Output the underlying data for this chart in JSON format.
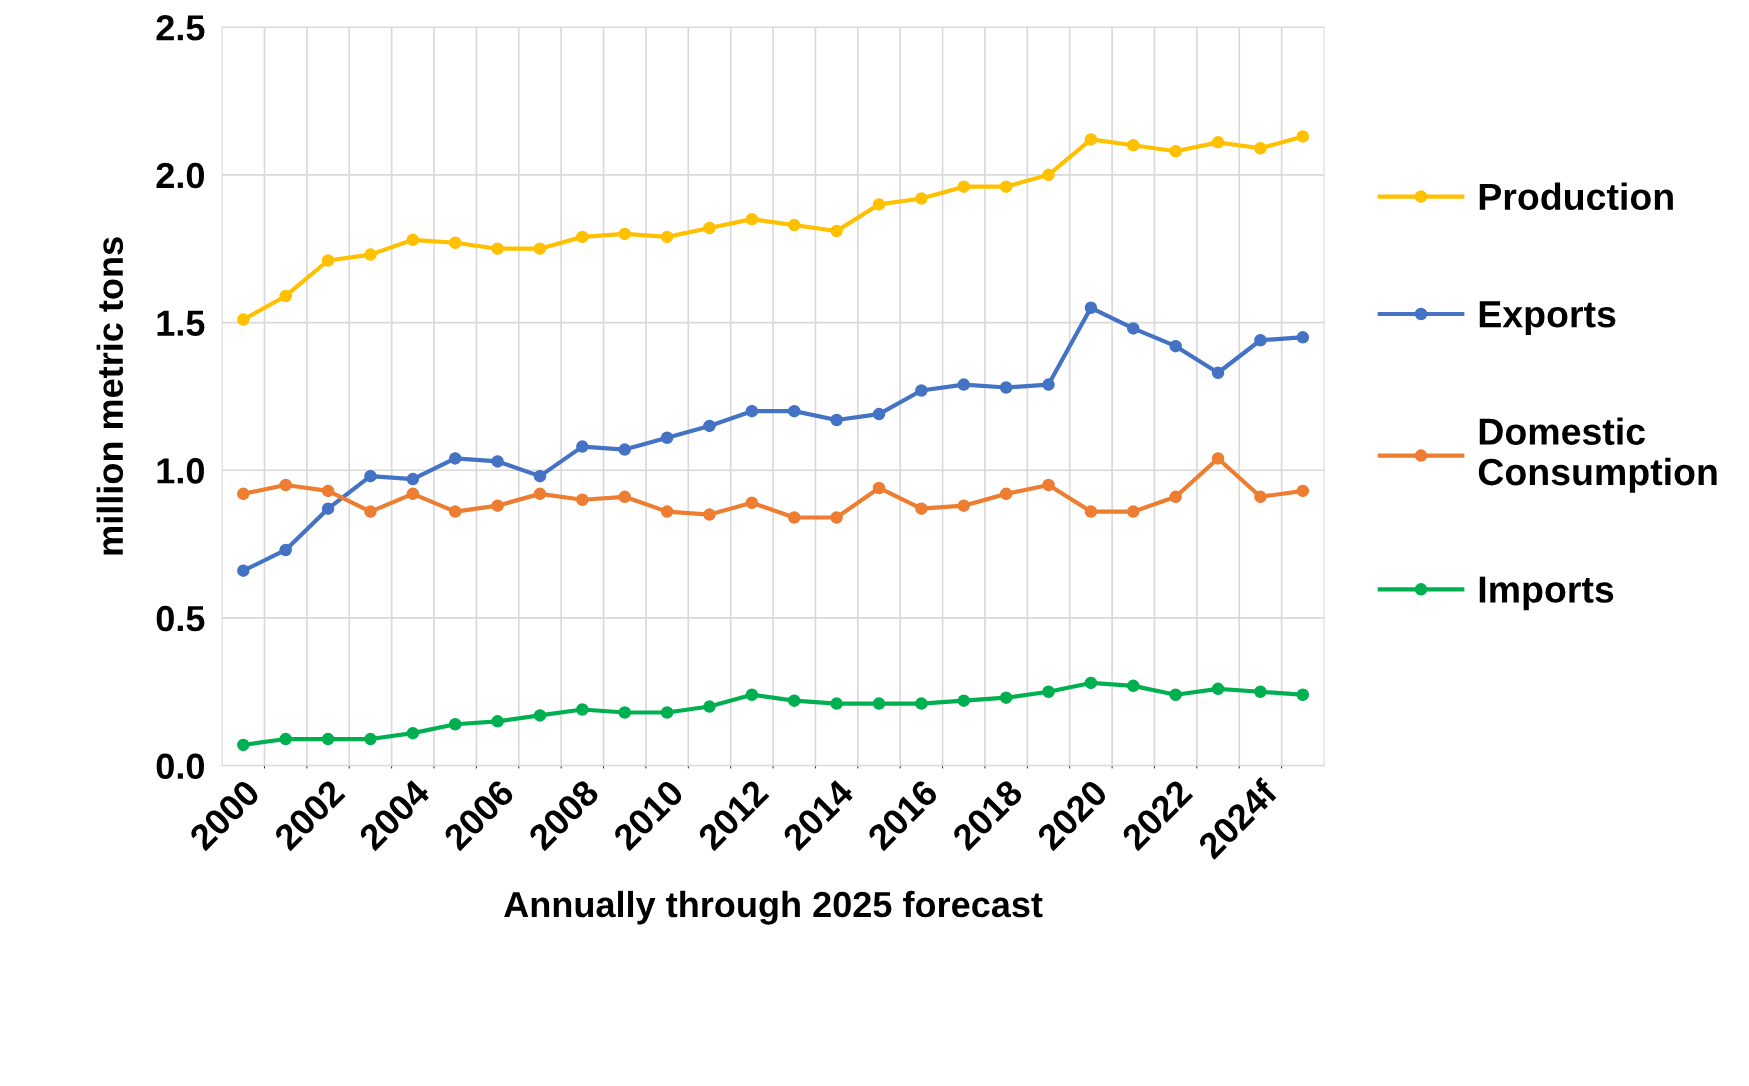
{
  "chart_data": {
    "type": "line",
    "xlabel": "Annually through 2025 forecast",
    "ylabel": "million metric tons",
    "categories": [
      "2000",
      null,
      "2002",
      null,
      "2004",
      null,
      "2006",
      null,
      "2008",
      null,
      "2010",
      null,
      "2012",
      null,
      "2014",
      null,
      "2016",
      null,
      "2018",
      null,
      "2020",
      null,
      "2022",
      null,
      "2024f",
      null
    ],
    "series": [
      {
        "name": "Production",
        "color": "#ffc000",
        "values": [
          1.51,
          1.59,
          1.71,
          1.73,
          1.78,
          1.77,
          1.75,
          1.75,
          1.79,
          1.8,
          1.79,
          1.82,
          1.85,
          1.83,
          1.81,
          1.9,
          1.92,
          1.96,
          1.96,
          2.0,
          2.12,
          2.1,
          2.08,
          2.11,
          2.09,
          2.13
        ]
      },
      {
        "name": "Exports",
        "color": "#4472c4",
        "values": [
          0.66,
          0.73,
          0.87,
          0.98,
          0.97,
          1.04,
          1.03,
          0.98,
          1.08,
          1.07,
          1.11,
          1.15,
          1.2,
          1.2,
          1.17,
          1.19,
          1.27,
          1.29,
          1.28,
          1.29,
          1.55,
          1.48,
          1.42,
          1.33,
          1.44,
          1.45
        ]
      },
      {
        "name": "Domestic\nConsumption",
        "color": "#ed7d31",
        "values": [
          0.92,
          0.95,
          0.93,
          0.86,
          0.92,
          0.86,
          0.88,
          0.92,
          0.9,
          0.91,
          0.86,
          0.85,
          0.89,
          0.84,
          0.84,
          0.94,
          0.87,
          0.88,
          0.92,
          0.95,
          0.86,
          0.86,
          0.91,
          1.04,
          0.91,
          0.93
        ]
      },
      {
        "name": "Imports",
        "color": "#00b050",
        "values": [
          0.07,
          0.09,
          0.09,
          0.09,
          0.11,
          0.14,
          0.15,
          0.17,
          0.19,
          0.18,
          0.18,
          0.2,
          0.24,
          0.22,
          0.21,
          0.21,
          0.21,
          0.22,
          0.23,
          0.25,
          0.28,
          0.27,
          0.24,
          0.26,
          0.25,
          0.24
        ]
      }
    ],
    "ylim": [
      0,
      2.5
    ],
    "yticks": [
      {
        "value": 0,
        "label": "0.0"
      },
      {
        "value": 0.5,
        "label": "0.5"
      },
      {
        "value": 1,
        "label": "1.0"
      },
      {
        "value": 1.5,
        "label": "1.5"
      },
      {
        "value": 2,
        "label": "2.0"
      },
      {
        "value": 2.5,
        "label": "2.5"
      }
    ],
    "grid": true,
    "legend": "right",
    "marker": "circle",
    "line_style": "solid"
  }
}
